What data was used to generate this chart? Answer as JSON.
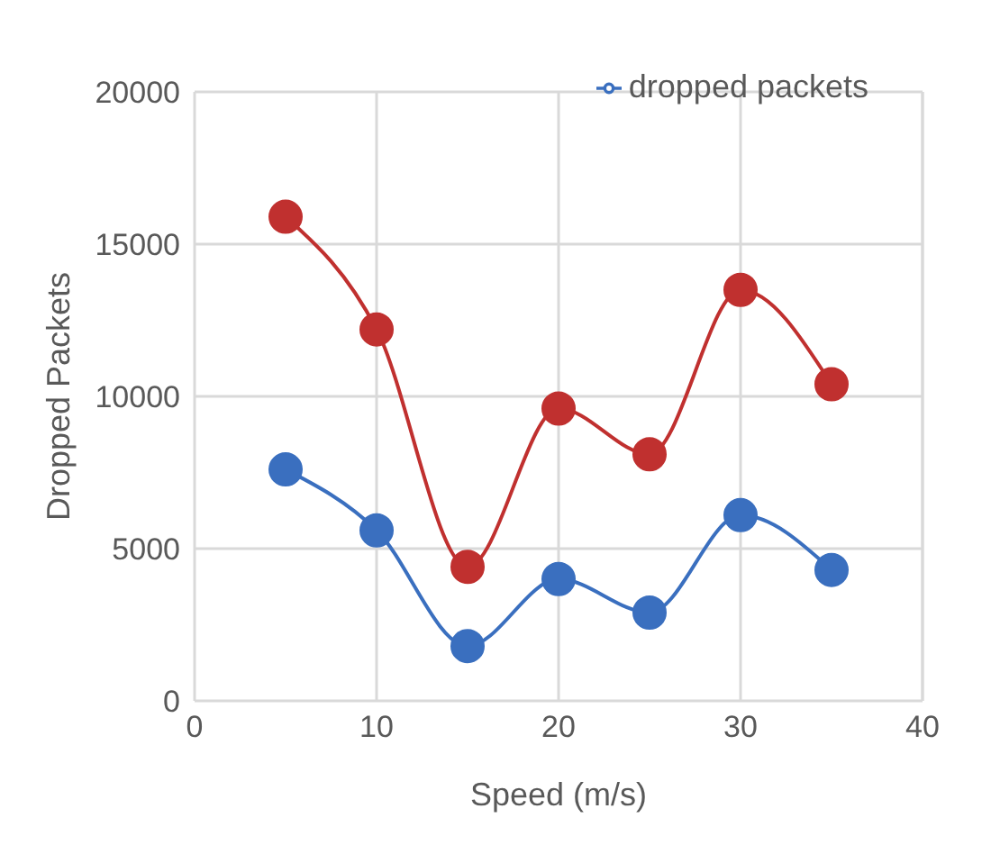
{
  "chart_data": {
    "type": "line",
    "xlabel": "Speed (m/s)",
    "ylabel": "Dropped Packets",
    "x": [
      5,
      10,
      15,
      20,
      25,
      30,
      35
    ],
    "series": [
      {
        "name": "dropped packets",
        "color": "#3a6fbf",
        "values": [
          7600,
          5600,
          1800,
          4000,
          2900,
          6100,
          4300
        ]
      },
      {
        "color": "#c0302f",
        "values": [
          15900,
          12200,
          4400,
          9600,
          8100,
          13500,
          10400
        ]
      }
    ],
    "xlim": [
      0,
      40
    ],
    "xticks": [
      0,
      10,
      20,
      30,
      40
    ],
    "ylim": [
      0,
      20000
    ],
    "yticks": [
      0,
      5000,
      10000,
      15000,
      20000
    ],
    "grid": true,
    "legend": "top right",
    "marker": "circle",
    "line_style": "solid"
  }
}
